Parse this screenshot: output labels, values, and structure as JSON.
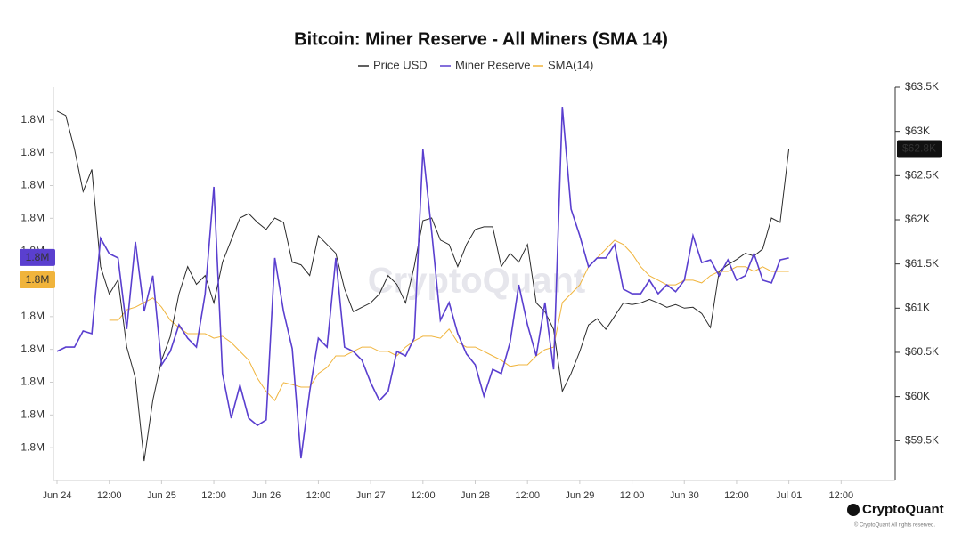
{
  "chart_data": {
    "type": "line",
    "title": "Bitcoin: Miner Reserve - All Miners (SMA 14)",
    "watermark": "CryptoQuant",
    "brand": "CryptoQuant",
    "copyright": "© CryptoQuant All rights reserved.",
    "legend": "top",
    "categories": [
      "Jun 24",
      null,
      null,
      null,
      null,
      null,
      "12:00",
      null,
      null,
      null,
      null,
      null,
      "Jun 25",
      null,
      null,
      null,
      null,
      null,
      "12:00",
      null,
      null,
      null,
      null,
      null,
      "Jun 26",
      null,
      null,
      null,
      null,
      null,
      "12:00",
      null,
      null,
      null,
      null,
      null,
      "Jun 27",
      null,
      null,
      null,
      null,
      null,
      "12:00",
      null,
      null,
      null,
      null,
      null,
      "Jun 28",
      null,
      null,
      null,
      null,
      null,
      "12:00",
      null,
      null,
      null,
      null,
      null,
      "Jun 29",
      null,
      null,
      null,
      null,
      null,
      "12:00",
      null,
      null,
      null,
      null,
      null,
      "Jun 30",
      null,
      null,
      null,
      null,
      null,
      "12:00",
      null,
      null,
      null,
      null,
      null,
      "Jul 01",
      null,
      null,
      null,
      null,
      null,
      "12:00",
      null,
      null,
      null,
      null,
      null,
      null
    ],
    "series": [
      {
        "name": "Price USD",
        "color": "#2b2b2b",
        "axis": "y2",
        "current_label": "$62.8K",
        "values": [
          63230,
          63180,
          62800,
          62320,
          62570,
          61470,
          61160,
          61320,
          60560,
          60210,
          59270,
          59960,
          60410,
          60680,
          61160,
          61470,
          61270,
          61370,
          61060,
          61520,
          61770,
          62020,
          62070,
          61970,
          61890,
          62020,
          61970,
          61520,
          61490,
          61370,
          61820,
          61720,
          61620,
          61220,
          60960,
          61010,
          61060,
          61160,
          61370,
          61270,
          61060,
          61470,
          61990,
          62020,
          61770,
          61720,
          61470,
          61720,
          61890,
          61920,
          61920,
          61470,
          61620,
          61520,
          61720,
          61060,
          60960,
          60760,
          60060,
          60260,
          60510,
          60810,
          60880,
          60760,
          60910,
          61060,
          61040,
          61060,
          61100,
          61060,
          61010,
          61040,
          61000,
          61010,
          60940,
          60780,
          61420,
          61490,
          61550,
          61620,
          61590,
          61670,
          62020,
          61970,
          62800,
          null,
          null,
          null,
          null,
          null,
          null,
          null,
          null,
          null,
          null,
          null,
          null
        ]
      },
      {
        "name": "Miner Reserve",
        "color": "#5a3fcf",
        "current_label": "1.8M",
        "values": [
          1797940,
          1798070,
          1798070,
          1798560,
          1798480,
          1801390,
          1800920,
          1800790,
          1798620,
          1801280,
          1799160,
          1800250,
          1797530,
          1797940,
          1798750,
          1798340,
          1798070,
          1799700,
          1802960,
          1797260,
          1795900,
          1796910,
          1795900,
          1795680,
          1795850,
          1800790,
          1799160,
          1798020,
          1794680,
          1796720,
          1798340,
          1798070,
          1800790,
          1798070,
          1797940,
          1797670,
          1796990,
          1796440,
          1796720,
          1797940,
          1797800,
          1798340,
          1804100,
          1801600,
          1798890,
          1799430,
          1798480,
          1797860,
          1797530,
          1796580,
          1797390,
          1797260,
          1798210,
          1799970,
          1798750,
          1797800,
          1799430,
          1797390,
          1805400,
          1802280,
          1801470,
          1800520,
          1800790,
          1800790,
          1801200,
          1799840,
          1799700,
          1799700,
          1800110,
          1799700,
          1799970,
          1799760,
          1800110,
          1801470,
          1800650,
          1800730,
          1800250,
          1800730,
          1800110,
          1800250,
          1800920,
          1800110,
          1800030,
          1800730,
          1800790,
          null,
          null,
          null,
          null,
          null,
          null,
          null,
          null,
          null,
          null,
          null,
          null
        ]
      },
      {
        "name": "SMA(14)",
        "color": "#f0b43c",
        "current_label": "1.8M",
        "values": [
          null,
          null,
          null,
          null,
          null,
          null,
          1798890,
          1798890,
          1799210,
          1799290,
          1799430,
          1799570,
          1799290,
          1798890,
          1798670,
          1798480,
          1798480,
          1798480,
          1798340,
          1798400,
          1798210,
          1797940,
          1797670,
          1797120,
          1796720,
          1796440,
          1796990,
          1796930,
          1796850,
          1796850,
          1797260,
          1797450,
          1797800,
          1797800,
          1797940,
          1798070,
          1798070,
          1797940,
          1797940,
          1797800,
          1798070,
          1798260,
          1798400,
          1798400,
          1798340,
          1798620,
          1798210,
          1798070,
          1798070,
          1797940,
          1797800,
          1797670,
          1797480,
          1797530,
          1797530,
          1797800,
          1797990,
          1798070,
          1799430,
          1799700,
          1799970,
          1800520,
          1800790,
          1801060,
          1801330,
          1801200,
          1800920,
          1800520,
          1800250,
          1800110,
          1799970,
          1799970,
          1800110,
          1800110,
          1800030,
          1800250,
          1800380,
          1800380,
          1800520,
          1800520,
          1800380,
          1800520,
          1800380,
          1800380,
          1800380,
          null,
          null,
          null,
          null,
          null,
          null,
          null,
          null,
          null,
          null,
          null,
          null
        ]
      }
    ],
    "ylim": [
      1794000,
      1806000
    ],
    "yticks": [
      {
        "value": 1805000,
        "label": "1.8M"
      },
      {
        "value": 1804000,
        "label": "1.8M"
      },
      {
        "value": 1803000,
        "label": "1.8M"
      },
      {
        "value": 1802000,
        "label": "1.8M"
      },
      {
        "value": 1801000,
        "label": "1.8M"
      },
      {
        "value": 1800000,
        "label": "1.8M"
      },
      {
        "value": 1799000,
        "label": "1.8M"
      },
      {
        "value": 1798000,
        "label": "1.8M"
      },
      {
        "value": 1797000,
        "label": "1.8M"
      },
      {
        "value": 1796000,
        "label": "1.8M"
      },
      {
        "value": 1795000,
        "label": "1.8M"
      }
    ],
    "y2lim": [
      59050,
      63500
    ],
    "y2ticks": [
      {
        "value": 63500,
        "label": "$63.5K"
      },
      {
        "value": 63000,
        "label": "$63K"
      },
      {
        "value": 62500,
        "label": "$62.5K"
      },
      {
        "value": 62000,
        "label": "$62K"
      },
      {
        "value": 61500,
        "label": "$61.5K"
      },
      {
        "value": 61000,
        "label": "$61K"
      },
      {
        "value": 60500,
        "label": "$60.5K"
      },
      {
        "value": 60000,
        "label": "$60K"
      },
      {
        "value": 59500,
        "label": "$59.5K"
      }
    ],
    "grid": false
  }
}
